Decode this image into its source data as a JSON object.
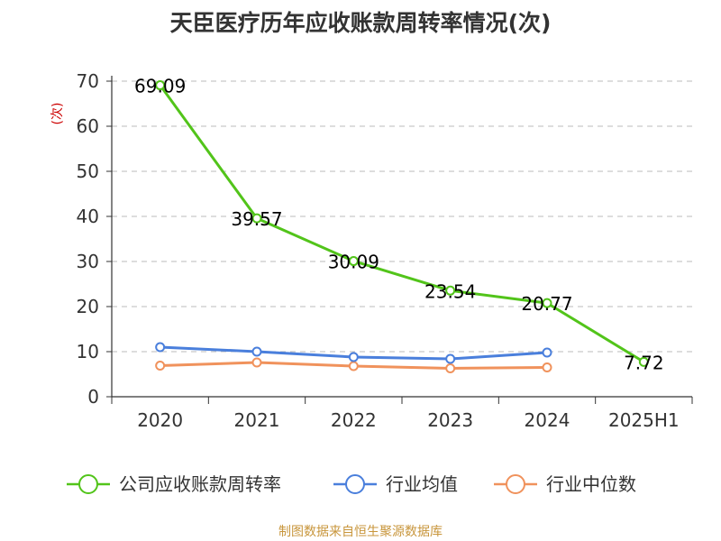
{
  "chart_data": {
    "type": "line",
    "title": "天臣医疗历年应收账款周转率情况(次)",
    "ylabel": "(次)",
    "xlabel": "",
    "categories": [
      "2020",
      "2021",
      "2022",
      "2023",
      "2024",
      "2025H1"
    ],
    "ylim": [
      0,
      70
    ],
    "yticks": [
      0,
      10,
      20,
      30,
      40,
      50,
      60,
      70
    ],
    "grid": true,
    "legend_position": "bottom",
    "series": [
      {
        "name": "公司应收账款周转率",
        "color": "#52c41a",
        "values": [
          69.09,
          39.57,
          30.09,
          23.54,
          20.77,
          7.72
        ],
        "labels": [
          "69.09",
          "39.57",
          "30.09",
          "23.54",
          "20.77",
          "7.72"
        ]
      },
      {
        "name": "行业均值",
        "color": "#4a7fdc",
        "values": [
          11.0,
          10.0,
          8.8,
          8.4,
          9.8,
          null
        ]
      },
      {
        "name": "行业中位数",
        "color": "#f0925c",
        "values": [
          6.9,
          7.6,
          6.8,
          6.3,
          6.5,
          null
        ]
      }
    ]
  },
  "source": "制图数据来自恒生聚源数据库",
  "colors": {
    "unit_label": "#cc0000",
    "source": "#c8963c",
    "axis": "#333333",
    "grid": "#bbbbbb"
  }
}
